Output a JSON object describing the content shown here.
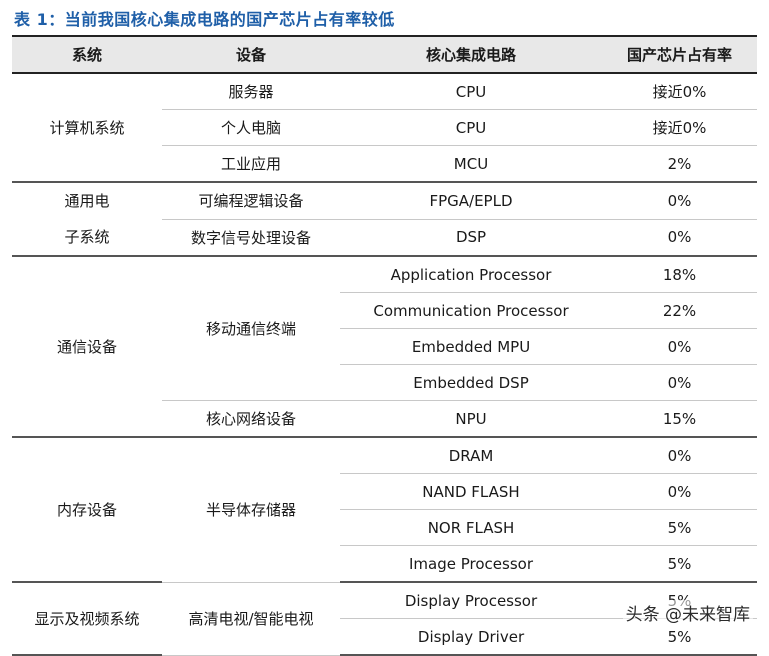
{
  "caption": "表 1：当前我国核心集成电路的国产芯片占有率较低",
  "headers": [
    "系统",
    "设备",
    "核心集成电路",
    "国产芯片占有率"
  ],
  "groups": [
    {
      "system": "计算机系统",
      "devices": [
        {
          "device": "服务器",
          "chips": [
            {
              "chip": "CPU",
              "rate": "接近0%"
            }
          ]
        },
        {
          "device": "个人电脑",
          "chips": [
            {
              "chip": "CPU",
              "rate": "接近0%"
            }
          ]
        },
        {
          "device": "工业应用",
          "chips": [
            {
              "chip": "MCU",
              "rate": "2%"
            }
          ]
        }
      ]
    },
    {
      "system": "通用电\n子系统",
      "devices": [
        {
          "device": "可编程逻辑设备",
          "chips": [
            {
              "chip": "FPGA/EPLD",
              "rate": "0%"
            }
          ]
        },
        {
          "device": "数字信号处理设备",
          "chips": [
            {
              "chip": "DSP",
              "rate": "0%"
            }
          ]
        }
      ]
    },
    {
      "system": "通信设备",
      "devices": [
        {
          "device": "移动通信终端",
          "chips": [
            {
              "chip": "Application Processor",
              "rate": "18%"
            },
            {
              "chip": "Communication Processor",
              "rate": "22%"
            },
            {
              "chip": "Embedded MPU",
              "rate": "0%"
            },
            {
              "chip": "Embedded DSP",
              "rate": "0%"
            }
          ]
        },
        {
          "device": "核心网络设备",
          "chips": [
            {
              "chip": "NPU",
              "rate": "15%"
            }
          ]
        }
      ]
    },
    {
      "system": "内存设备",
      "devices": [
        {
          "device": "半导体存储器",
          "chips": [
            {
              "chip": "DRAM",
              "rate": "0%"
            },
            {
              "chip": "NAND FLASH",
              "rate": "0%"
            },
            {
              "chip": "NOR FLASH",
              "rate": "5%"
            },
            {
              "chip": "Image Processor",
              "rate": "5%"
            }
          ]
        }
      ]
    },
    {
      "system": "显示及视频系统",
      "devices": [
        {
          "device": "高清电视/智能电视",
          "chips": [
            {
              "chip": "Display Processor",
              "rate": "5%"
            },
            {
              "chip": "Display Driver",
              "rate": "5%"
            }
          ]
        }
      ]
    }
  ],
  "watermark": "头条 @未来智库"
}
